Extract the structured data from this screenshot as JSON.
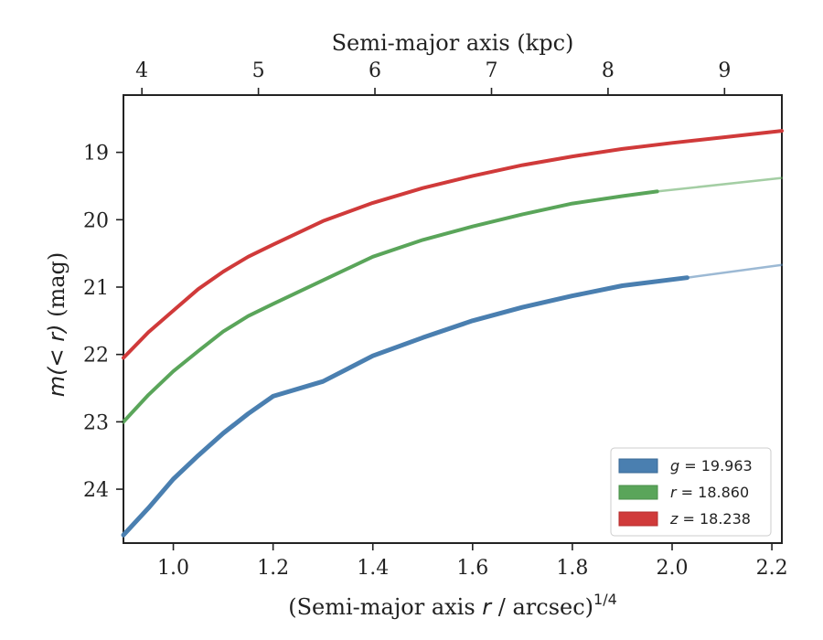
{
  "chart_data": {
    "type": "line",
    "xlabel": "(Semi-major axis r / arcsec)",
    "xlabel_prefix": "(Semi-major axis ",
    "xlabel_var": "r",
    "xlabel_suffix": " / arcsec)",
    "xlabel_exp": "1/4",
    "ylabel": "m(< r) (mag)",
    "ylabel_math": "m(< r)",
    "ylabel_unit": " (mag)",
    "x2label": "Semi-major axis (kpc)",
    "xlim": [
      0.9,
      2.22
    ],
    "ylim": [
      24.8,
      18.15
    ],
    "x_ticks": [
      1.0,
      1.2,
      1.4,
      1.6,
      1.8,
      2.0,
      2.2
    ],
    "x_tick_labels": [
      "1.0",
      "1.2",
      "1.4",
      "1.6",
      "1.8",
      "2.0",
      "2.2"
    ],
    "y_ticks": [
      19,
      20,
      21,
      22,
      23,
      24
    ],
    "y_tick_labels": [
      "19",
      "20",
      "21",
      "22",
      "23",
      "24"
    ],
    "x2_ticks": [
      4,
      5,
      6,
      7,
      8,
      9
    ],
    "x2_tick_labels": [
      "4",
      "5",
      "6",
      "7",
      "8",
      "9"
    ],
    "x2_to_x": {
      "4": 0.937,
      "5": 1.1706,
      "6": 1.4042,
      "7": 1.6379,
      "8": 1.8715,
      "9": 2.1051
    },
    "legend_position": "lower-right",
    "grid": false,
    "series": [
      {
        "name": "g = 19.963",
        "var": "g",
        "value": "19.963",
        "color": "#4a7fb0",
        "x": [
          0.9,
          0.95,
          1.0,
          1.05,
          1.1,
          1.15,
          1.2,
          1.3,
          1.4,
          1.5,
          1.6,
          1.7,
          1.8,
          1.9,
          2.03
        ],
        "y": [
          24.68,
          24.28,
          23.85,
          23.5,
          23.17,
          22.88,
          22.62,
          22.4,
          22.02,
          21.75,
          21.5,
          21.3,
          21.13,
          20.98,
          20.86
        ],
        "extension_x": [
          2.03,
          2.22
        ],
        "extension_y": [
          20.86,
          20.67
        ]
      },
      {
        "name": "r = 18.860",
        "var": "r",
        "value": "18.860",
        "color": "#5aa55a",
        "x": [
          0.9,
          0.95,
          1.0,
          1.05,
          1.1,
          1.15,
          1.2,
          1.3,
          1.4,
          1.5,
          1.6,
          1.7,
          1.8,
          1.9,
          1.97
        ],
        "y": [
          23.0,
          22.6,
          22.25,
          21.95,
          21.66,
          21.43,
          21.25,
          20.9,
          20.55,
          20.3,
          20.1,
          19.92,
          19.76,
          19.65,
          19.58
        ],
        "extension_x": [
          1.97,
          2.22
        ],
        "extension_y": [
          19.58,
          19.38
        ]
      },
      {
        "name": "z = 18.238",
        "var": "z",
        "value": "18.238",
        "color": "#d03a3a",
        "x": [
          0.9,
          0.95,
          1.0,
          1.05,
          1.1,
          1.15,
          1.2,
          1.3,
          1.4,
          1.5,
          1.6,
          1.7,
          1.8,
          1.9,
          2.0,
          2.1,
          2.22
        ],
        "y": [
          22.05,
          21.67,
          21.35,
          21.03,
          20.77,
          20.55,
          20.37,
          20.02,
          19.75,
          19.53,
          19.35,
          19.19,
          19.06,
          18.95,
          18.86,
          18.78,
          18.68
        ],
        "extension_x": [],
        "extension_y": []
      }
    ]
  }
}
